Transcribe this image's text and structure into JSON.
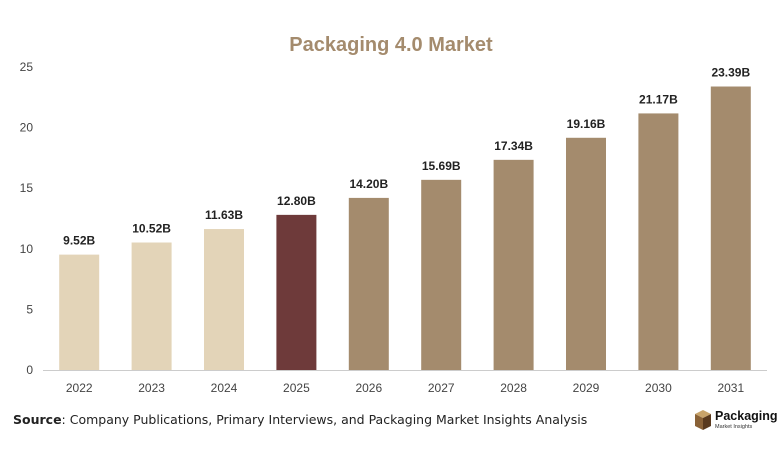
{
  "chart_data": {
    "type": "bar",
    "title": "Packaging 4.0 Market",
    "categories": [
      "2022",
      "2023",
      "2024",
      "2025",
      "2026",
      "2027",
      "2028",
      "2029",
      "2030",
      "2031"
    ],
    "values": [
      9.52,
      10.52,
      11.63,
      12.8,
      14.2,
      15.69,
      17.34,
      19.16,
      21.17,
      23.39
    ],
    "data_labels": [
      "9.52B",
      "10.52B",
      "11.63B",
      "12.80B",
      "14.20B",
      "15.69B",
      "17.34B",
      "19.16B",
      "21.17B",
      "23.39B"
    ],
    "ylim": [
      0,
      25
    ],
    "yticks": [
      0,
      5,
      10,
      15,
      20,
      25
    ],
    "xlabel": "",
    "ylabel": "",
    "grid": false,
    "bar_colors": [
      "#e3d4b8",
      "#e3d4b8",
      "#e3d4b8",
      "#6e3a3a",
      "#a48b6d",
      "#a48b6d",
      "#a48b6d",
      "#a48b6d",
      "#a48b6d",
      "#a48b6d"
    ],
    "colors": {
      "title": "#a48b6d",
      "historical": "#e3d4b8",
      "current": "#6e3a3a",
      "forecast": "#a48b6d",
      "axis": "#cccccc",
      "tick_text": "#444444",
      "label_text": "#222222"
    }
  },
  "source": {
    "label": "Source",
    "text": ": Company Publications, Primary Interviews, and Packaging Market Insights Analysis"
  },
  "logo": {
    "name": "Packaging",
    "tagline": "Market Insights"
  },
  "icons": {
    "logo": "box-icon"
  }
}
